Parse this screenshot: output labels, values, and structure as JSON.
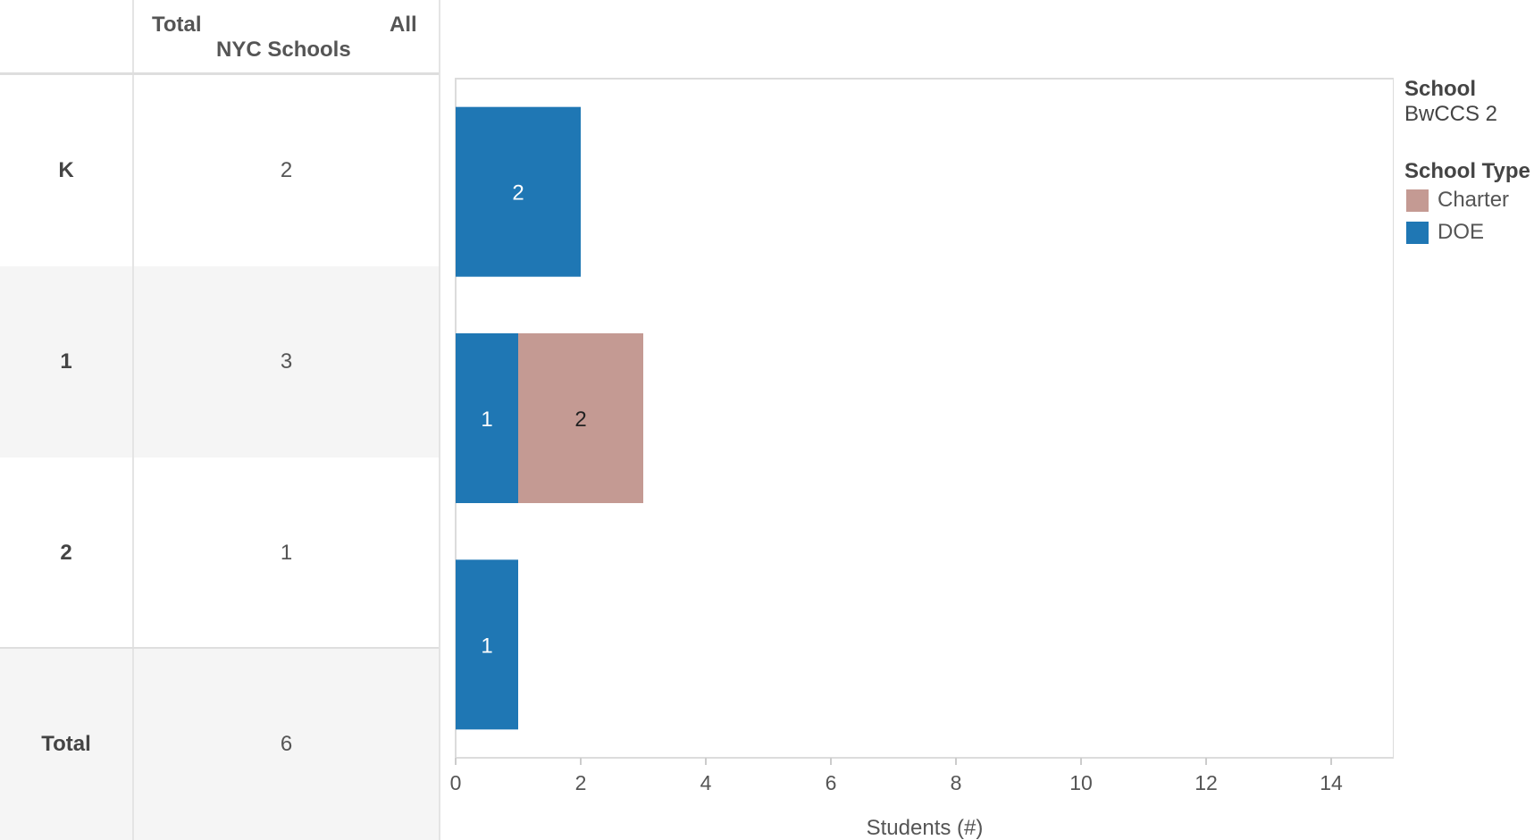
{
  "table": {
    "header_total": "Total",
    "header_all": "All",
    "header_group": "NYC Schools",
    "rows": [
      {
        "label": "K",
        "value": "2"
      },
      {
        "label": "1",
        "value": "3"
      },
      {
        "label": "2",
        "value": "1"
      },
      {
        "label": "Total",
        "value": "6"
      }
    ]
  },
  "legend": {
    "school_title": "School",
    "school_value": "BwCCS 2",
    "type_title": "School Type",
    "items": [
      {
        "label": "Charter",
        "color": "#c49a93"
      },
      {
        "label": "DOE",
        "color": "#1f77b4"
      }
    ]
  },
  "chart_data": {
    "type": "bar",
    "orientation": "horizontal",
    "stacked": true,
    "categories": [
      "K",
      "1",
      "2"
    ],
    "series": [
      {
        "name": "DOE",
        "color": "#1f77b4",
        "values": [
          2,
          1,
          1
        ]
      },
      {
        "name": "Charter",
        "color": "#c49a93",
        "values": [
          0,
          2,
          0
        ]
      }
    ],
    "xlabel": "Students (#)",
    "ylabel": "",
    "xlim": [
      0,
      15
    ],
    "xticks": [
      0,
      2,
      4,
      6,
      8,
      10,
      12,
      14
    ],
    "grid": false,
    "legend_position": "right"
  }
}
